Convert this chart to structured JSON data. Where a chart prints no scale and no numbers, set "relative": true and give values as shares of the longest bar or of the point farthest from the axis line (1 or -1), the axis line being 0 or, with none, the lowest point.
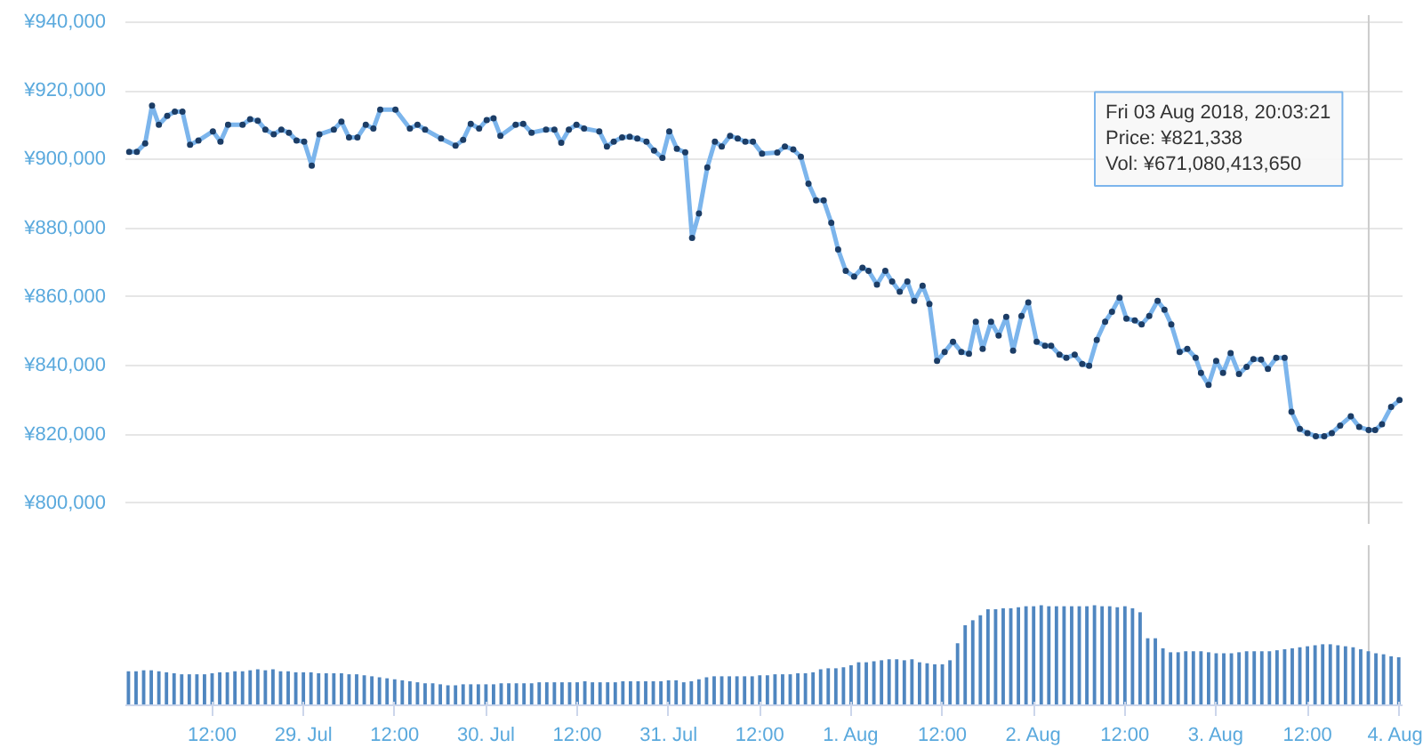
{
  "chart_data": [
    {
      "type": "line",
      "marker": "circle",
      "grid": "y",
      "tick_labels": "y",
      "xlim": [
        "2018-07-28T00:36",
        "2018-08-04T00:30"
      ],
      "ylim": [
        794000,
        942000
      ],
      "yticks": [
        {
          "value": 800000,
          "label": "¥800,000"
        },
        {
          "value": 820000,
          "label": "¥820,000"
        },
        {
          "value": 840000,
          "label": "¥840,000"
        },
        {
          "value": 860000,
          "label": "¥860,000"
        },
        {
          "value": 880000,
          "label": "¥880,000"
        },
        {
          "value": 900000,
          "label": "¥900,000"
        },
        {
          "value": 920000,
          "label": "¥920,000"
        },
        {
          "value": 940000,
          "label": "¥940,000"
        }
      ],
      "ref_lines": [
        {
          "axis": "x",
          "value": "2018-08-03T20:03",
          "color": "#cccccc"
        }
      ],
      "annotations": [
        "Fri 03 Aug 2018, 20:03:21\nPrice: ¥821,338\nVol: ¥671,080,413,650"
      ],
      "series": [
        {
          "color": "#7cb5ec",
          "x": [
            "2018-07-28T01:06",
            "2018-07-28T02:06",
            "2018-07-28T03:12",
            "2018-07-28T04:06",
            "2018-07-28T05:00",
            "2018-07-28T06:06",
            "2018-07-28T07:06",
            "2018-07-28T08:06",
            "2018-07-28T09:06",
            "2018-07-28T10:12",
            "2018-07-28T12:06",
            "2018-07-28T13:06",
            "2018-07-28T14:06",
            "2018-07-28T16:00",
            "2018-07-28T17:00",
            "2018-07-28T18:00",
            "2018-07-28T19:00",
            "2018-07-28T20:06",
            "2018-07-28T21:06",
            "2018-07-28T22:06",
            "2018-07-28T23:06",
            "2018-07-29T00:06",
            "2018-07-29T01:06",
            "2018-07-29T02:06",
            "2018-07-29T04:00",
            "2018-07-29T05:00",
            "2018-07-29T06:00",
            "2018-07-29T07:06",
            "2018-07-29T08:12",
            "2018-07-29T09:12",
            "2018-07-29T10:06",
            "2018-07-29T12:06",
            "2018-07-29T14:00",
            "2018-07-29T15:00",
            "2018-07-29T16:00",
            "2018-07-29T18:06",
            "2018-07-29T20:00",
            "2018-07-29T21:00",
            "2018-07-29T22:00",
            "2018-07-29T23:06",
            "2018-07-30T00:06",
            "2018-07-30T01:00",
            "2018-07-30T01:54",
            "2018-07-30T03:54",
            "2018-07-30T04:54",
            "2018-07-30T06:00",
            "2018-07-30T07:54",
            "2018-07-30T09:00",
            "2018-07-30T09:54",
            "2018-07-30T10:54",
            "2018-07-30T11:54",
            "2018-07-30T12:54",
            "2018-07-30T14:54",
            "2018-07-30T15:54",
            "2018-07-30T16:48",
            "2018-07-30T17:54",
            "2018-07-30T18:54",
            "2018-07-30T19:54",
            "2018-07-30T21:06",
            "2018-07-30T22:06",
            "2018-07-30T23:12",
            "2018-07-31T00:06",
            "2018-07-31T01:06",
            "2018-07-31T02:12",
            "2018-07-31T03:06",
            "2018-07-31T04:00",
            "2018-07-31T05:06",
            "2018-07-31T06:06",
            "2018-07-31T07:00",
            "2018-07-31T08:06",
            "2018-07-31T09:06",
            "2018-07-31T10:06",
            "2018-07-31T11:06",
            "2018-07-31T12:18",
            "2018-07-31T14:18",
            "2018-07-31T15:18",
            "2018-07-31T16:24",
            "2018-07-31T17:24",
            "2018-07-31T18:24",
            "2018-07-31T19:24",
            "2018-07-31T20:24",
            "2018-07-31T21:24",
            "2018-07-31T22:18",
            "2018-07-31T23:18",
            "2018-08-01T00:24",
            "2018-08-01T01:30",
            "2018-08-01T02:18",
            "2018-08-01T03:24",
            "2018-08-01T04:30",
            "2018-08-01T05:24",
            "2018-08-01T06:24",
            "2018-08-01T07:24",
            "2018-08-01T08:18",
            "2018-08-01T09:24",
            "2018-08-01T10:18",
            "2018-08-01T11:18",
            "2018-08-01T12:18",
            "2018-08-01T13:24",
            "2018-08-01T14:30",
            "2018-08-01T15:30",
            "2018-08-01T16:24",
            "2018-08-01T17:18",
            "2018-08-01T18:24",
            "2018-08-01T19:24",
            "2018-08-01T20:24",
            "2018-08-01T21:18",
            "2018-08-01T22:24",
            "2018-08-01T23:18",
            "2018-08-02T00:24",
            "2018-08-02T01:30",
            "2018-08-02T02:18",
            "2018-08-02T03:24",
            "2018-08-02T04:18",
            "2018-08-02T05:24",
            "2018-08-02T06:24",
            "2018-08-02T07:18",
            "2018-08-02T08:18",
            "2018-08-02T09:24",
            "2018-08-02T10:18",
            "2018-08-02T11:18",
            "2018-08-02T12:12",
            "2018-08-02T13:18",
            "2018-08-02T14:12",
            "2018-08-02T15:12",
            "2018-08-02T16:18",
            "2018-08-02T17:12",
            "2018-08-02T18:06",
            "2018-08-02T19:12",
            "2018-08-02T20:12",
            "2018-08-02T21:18",
            "2018-08-02T22:00",
            "2018-08-02T23:00",
            "2018-08-03T00:00",
            "2018-08-03T00:54",
            "2018-08-03T01:54",
            "2018-08-03T03:00",
            "2018-08-03T04:00",
            "2018-08-03T04:54",
            "2018-08-03T05:54",
            "2018-08-03T06:48",
            "2018-08-03T07:54",
            "2018-08-03T09:00",
            "2018-08-03T09:54",
            "2018-08-03T11:00",
            "2018-08-03T12:00",
            "2018-08-03T13:06",
            "2018-08-03T14:12",
            "2018-08-03T15:12",
            "2018-08-03T16:18",
            "2018-08-03T17:42",
            "2018-08-03T18:48",
            "2018-08-03T20:03",
            "2018-08-03T20:54",
            "2018-08-03T21:48",
            "2018-08-03T23:00",
            "2018-08-04T00:06"
          ],
          "values": [
            902200,
            902200,
            904700,
            915700,
            910100,
            912700,
            913900,
            913900,
            904300,
            905500,
            908200,
            905200,
            910100,
            910100,
            911700,
            911300,
            908700,
            907300,
            908700,
            907800,
            905500,
            905200,
            898200,
            907300,
            908700,
            911000,
            906400,
            906400,
            910100,
            909000,
            914500,
            914500,
            909000,
            910100,
            908700,
            906100,
            904000,
            905700,
            910400,
            909000,
            911500,
            912000,
            906900,
            910100,
            910400,
            907800,
            908700,
            908700,
            904900,
            908700,
            910100,
            909000,
            908200,
            903800,
            905200,
            906400,
            906600,
            906100,
            905200,
            902600,
            900500,
            908200,
            903100,
            902100,
            877200,
            884300,
            897700,
            905200,
            903800,
            906900,
            906100,
            905200,
            905200,
            901700,
            902000,
            903800,
            902900,
            900800,
            893000,
            888100,
            888100,
            881600,
            873800,
            867600,
            865900,
            868500,
            867600,
            863600,
            867600,
            864500,
            861500,
            864500,
            858900,
            863300,
            858000,
            841400,
            844000,
            847000,
            844000,
            843500,
            852800,
            844900,
            852800,
            848800,
            854200,
            844400,
            854500,
            858400,
            847000,
            845800,
            845800,
            843200,
            842300,
            843200,
            840500,
            840000,
            847500,
            852800,
            855700,
            859800,
            853700,
            853200,
            852000,
            854500,
            858900,
            856300,
            852000,
            844000,
            844900,
            842300,
            837900,
            834400,
            841400,
            837900,
            843700,
            837600,
            839700,
            841900,
            841800,
            839100,
            842300,
            842300,
            826600,
            821600,
            820400,
            819500,
            819500,
            820400,
            822600,
            825300,
            822200,
            821300,
            821300,
            823000,
            828000,
            830000
          ]
        }
      ]
    },
    {
      "type": "bar",
      "relative": true,
      "tick_labels": "x",
      "xlim": [
        "2018-07-28T00:36",
        "2018-08-04T00:30"
      ],
      "xticks": [
        {
          "value": "2018-07-28T12:00",
          "label": "12:00"
        },
        {
          "value": "2018-07-29T00:00",
          "label": "29. Jul"
        },
        {
          "value": "2018-07-29T12:00",
          "label": "12:00"
        },
        {
          "value": "2018-07-30T00:00",
          "label": "30. Jul"
        },
        {
          "value": "2018-07-30T12:00",
          "label": "12:00"
        },
        {
          "value": "2018-07-31T00:00",
          "label": "31. Jul"
        },
        {
          "value": "2018-07-31T12:00",
          "label": "12:00"
        },
        {
          "value": "2018-08-01T00:00",
          "label": "1. Aug"
        },
        {
          "value": "2018-08-01T12:00",
          "label": "12:00"
        },
        {
          "value": "2018-08-02T00:00",
          "label": "2. Aug"
        },
        {
          "value": "2018-08-02T12:00",
          "label": "12:00"
        },
        {
          "value": "2018-08-03T00:00",
          "label": "3. Aug"
        },
        {
          "value": "2018-08-03T12:00",
          "label": "12:00"
        },
        {
          "value": "2018-08-04T00:00",
          "label": "4. Aug"
        }
      ],
      "ref_lines": [
        {
          "axis": "x",
          "value": "2018-08-03T20:03",
          "color": "#cccccc"
        }
      ],
      "series": [
        {
          "color": "#4f86c0",
          "x": [
            "2018-07-28T01:00",
            "2018-07-28T02:00",
            "2018-07-28T03:00",
            "2018-07-28T04:00",
            "2018-07-28T05:00",
            "2018-07-28T06:00",
            "2018-07-28T07:00",
            "2018-07-28T08:00",
            "2018-07-28T09:00",
            "2018-07-28T10:00",
            "2018-07-28T11:00",
            "2018-07-28T12:00",
            "2018-07-28T13:00",
            "2018-07-28T14:00",
            "2018-07-28T15:00",
            "2018-07-28T16:00",
            "2018-07-28T17:00",
            "2018-07-28T18:00",
            "2018-07-28T19:00",
            "2018-07-28T20:00",
            "2018-07-28T21:00",
            "2018-07-28T22:00",
            "2018-07-28T23:00",
            "2018-07-29T00:00",
            "2018-07-29T01:00",
            "2018-07-29T02:00",
            "2018-07-29T03:00",
            "2018-07-29T04:00",
            "2018-07-29T05:00",
            "2018-07-29T06:00",
            "2018-07-29T07:00",
            "2018-07-29T08:00",
            "2018-07-29T09:00",
            "2018-07-29T10:00",
            "2018-07-29T11:00",
            "2018-07-29T12:00",
            "2018-07-29T13:00",
            "2018-07-29T14:00",
            "2018-07-29T15:00",
            "2018-07-29T16:00",
            "2018-07-29T17:00",
            "2018-07-29T18:00",
            "2018-07-29T19:00",
            "2018-07-29T20:00",
            "2018-07-29T21:00",
            "2018-07-29T22:00",
            "2018-07-29T23:00",
            "2018-07-30T00:00",
            "2018-07-30T01:00",
            "2018-07-30T02:00",
            "2018-07-30T03:00",
            "2018-07-30T04:00",
            "2018-07-30T05:00",
            "2018-07-30T06:00",
            "2018-07-30T07:00",
            "2018-07-30T08:00",
            "2018-07-30T09:00",
            "2018-07-30T10:00",
            "2018-07-30T11:00",
            "2018-07-30T12:00",
            "2018-07-30T13:00",
            "2018-07-30T14:00",
            "2018-07-30T15:00",
            "2018-07-30T16:00",
            "2018-07-30T17:00",
            "2018-07-30T18:00",
            "2018-07-30T19:00",
            "2018-07-30T20:00",
            "2018-07-30T21:00",
            "2018-07-30T22:00",
            "2018-07-30T23:00",
            "2018-07-31T00:00",
            "2018-07-31T01:00",
            "2018-07-31T02:00",
            "2018-07-31T03:00",
            "2018-07-31T04:00",
            "2018-07-31T05:00",
            "2018-07-31T06:00",
            "2018-07-31T07:00",
            "2018-07-31T08:00",
            "2018-07-31T09:00",
            "2018-07-31T10:00",
            "2018-07-31T11:00",
            "2018-07-31T12:00",
            "2018-07-31T13:00",
            "2018-07-31T14:00",
            "2018-07-31T15:00",
            "2018-07-31T16:00",
            "2018-07-31T17:00",
            "2018-07-31T18:00",
            "2018-07-31T19:00",
            "2018-07-31T20:00",
            "2018-07-31T21:00",
            "2018-07-31T22:00",
            "2018-07-31T23:00",
            "2018-08-01T00:00",
            "2018-08-01T01:00",
            "2018-08-01T02:00",
            "2018-08-01T03:00",
            "2018-08-01T04:00",
            "2018-08-01T05:00",
            "2018-08-01T06:00",
            "2018-08-01T07:00",
            "2018-08-01T08:00",
            "2018-08-01T09:00",
            "2018-08-01T10:00",
            "2018-08-01T11:00",
            "2018-08-01T12:00",
            "2018-08-01T13:00",
            "2018-08-01T14:00",
            "2018-08-01T15:00",
            "2018-08-01T16:00",
            "2018-08-01T17:00",
            "2018-08-01T18:00",
            "2018-08-01T19:00",
            "2018-08-01T20:00",
            "2018-08-01T21:00",
            "2018-08-01T22:00",
            "2018-08-01T23:00",
            "2018-08-02T00:00",
            "2018-08-02T01:00",
            "2018-08-02T02:00",
            "2018-08-02T03:00",
            "2018-08-02T04:00",
            "2018-08-02T05:00",
            "2018-08-02T06:00",
            "2018-08-02T07:00",
            "2018-08-02T08:00",
            "2018-08-02T09:00",
            "2018-08-02T10:00",
            "2018-08-02T11:00",
            "2018-08-02T12:00",
            "2018-08-02T13:00",
            "2018-08-02T14:00",
            "2018-08-02T15:00",
            "2018-08-02T16:00",
            "2018-08-02T17:00",
            "2018-08-02T18:00",
            "2018-08-02T19:00",
            "2018-08-02T20:00",
            "2018-08-02T21:00",
            "2018-08-02T22:00",
            "2018-08-02T23:00",
            "2018-08-03T00:00",
            "2018-08-03T01:00",
            "2018-08-03T02:00",
            "2018-08-03T03:00",
            "2018-08-03T04:00",
            "2018-08-03T05:00",
            "2018-08-03T06:00",
            "2018-08-03T07:00",
            "2018-08-03T08:00",
            "2018-08-03T09:00",
            "2018-08-03T10:00",
            "2018-08-03T11:00",
            "2018-08-03T12:00",
            "2018-08-03T13:00",
            "2018-08-03T14:00",
            "2018-08-03T15:00",
            "2018-08-03T16:00",
            "2018-08-03T17:00",
            "2018-08-03T18:00",
            "2018-08-03T19:00",
            "2018-08-03T20:00",
            "2018-08-03T21:00",
            "2018-08-03T22:00",
            "2018-08-03T23:00",
            "2018-08-04T00:00"
          ],
          "values": [
            0.34,
            0.34,
            0.35,
            0.35,
            0.34,
            0.33,
            0.32,
            0.31,
            0.31,
            0.31,
            0.31,
            0.32,
            0.33,
            0.33,
            0.34,
            0.34,
            0.35,
            0.36,
            0.35,
            0.36,
            0.34,
            0.34,
            0.33,
            0.33,
            0.33,
            0.32,
            0.32,
            0.32,
            0.32,
            0.31,
            0.31,
            0.3,
            0.29,
            0.28,
            0.27,
            0.26,
            0.25,
            0.24,
            0.23,
            0.22,
            0.22,
            0.21,
            0.2,
            0.2,
            0.21,
            0.21,
            0.21,
            0.21,
            0.21,
            0.22,
            0.22,
            0.22,
            0.22,
            0.22,
            0.23,
            0.23,
            0.23,
            0.23,
            0.23,
            0.23,
            0.24,
            0.23,
            0.23,
            0.23,
            0.23,
            0.24,
            0.24,
            0.24,
            0.24,
            0.24,
            0.24,
            0.25,
            0.25,
            0.23,
            0.24,
            0.26,
            0.28,
            0.29,
            0.29,
            0.29,
            0.29,
            0.29,
            0.29,
            0.3,
            0.3,
            0.31,
            0.31,
            0.31,
            0.32,
            0.32,
            0.33,
            0.36,
            0.37,
            0.37,
            0.38,
            0.4,
            0.43,
            0.43,
            0.44,
            0.45,
            0.46,
            0.46,
            0.45,
            0.46,
            0.43,
            0.42,
            0.41,
            0.41,
            0.45,
            0.62,
            0.8,
            0.85,
            0.9,
            0.96,
            0.96,
            0.97,
            0.97,
            0.98,
            0.99,
            0.99,
            1.0,
            0.99,
            0.99,
            0.99,
            0.99,
            0.99,
            0.99,
            1.0,
            0.99,
            0.99,
            0.98,
            0.99,
            0.97,
            0.93,
            0.67,
            0.67,
            0.57,
            0.53,
            0.53,
            0.54,
            0.54,
            0.54,
            0.53,
            0.52,
            0.52,
            0.52,
            0.53,
            0.54,
            0.54,
            0.54,
            0.54,
            0.55,
            0.56,
            0.57,
            0.58,
            0.59,
            0.6,
            0.61,
            0.61,
            0.6,
            0.59,
            0.58,
            0.56,
            0.54,
            0.52,
            0.51,
            0.49,
            0.48
          ]
        }
      ]
    }
  ]
}
